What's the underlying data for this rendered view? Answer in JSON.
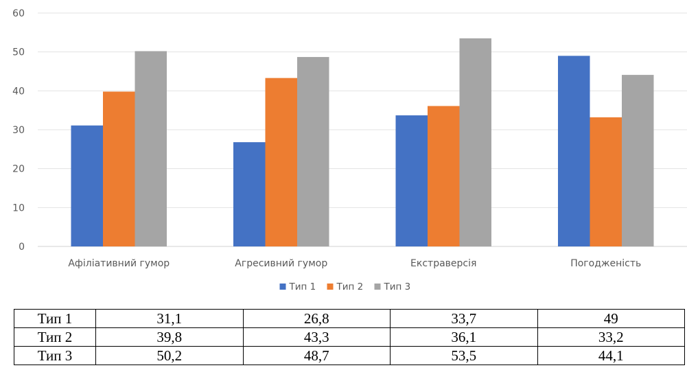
{
  "chart_data": {
    "type": "bar",
    "title": "",
    "xlabel": "",
    "ylabel": "",
    "categories": [
      "Афіліативний гумор",
      "Агресивний гумор",
      "Екстраверсія",
      "Погодженість"
    ],
    "series": [
      {
        "name": "Тип 1",
        "values": [
          31.1,
          26.8,
          33.7,
          49
        ],
        "color": "#4472C4"
      },
      {
        "name": "Тип 2",
        "values": [
          39.8,
          43.3,
          36.1,
          33.2
        ],
        "color": "#ED7D31"
      },
      {
        "name": "Тип 3",
        "values": [
          50.2,
          48.7,
          53.5,
          44.1
        ],
        "color": "#A5A5A5"
      }
    ],
    "ylim": [
      0,
      60
    ],
    "yticks": [
      "0",
      "10",
      "20",
      "30",
      "40",
      "50",
      "60"
    ],
    "grid": true,
    "legend": "bottom"
  },
  "table": {
    "rows": [
      {
        "label": "Тип 1",
        "cells": [
          "31,1",
          "26,8",
          "33,7",
          "49"
        ]
      },
      {
        "label": "Тип 2",
        "cells": [
          "39,8",
          "43,3",
          "36,1",
          "33,2"
        ]
      },
      {
        "label": "Тип 3",
        "cells": [
          "50,2",
          "48,7",
          "53,5",
          "44,1"
        ]
      }
    ]
  }
}
